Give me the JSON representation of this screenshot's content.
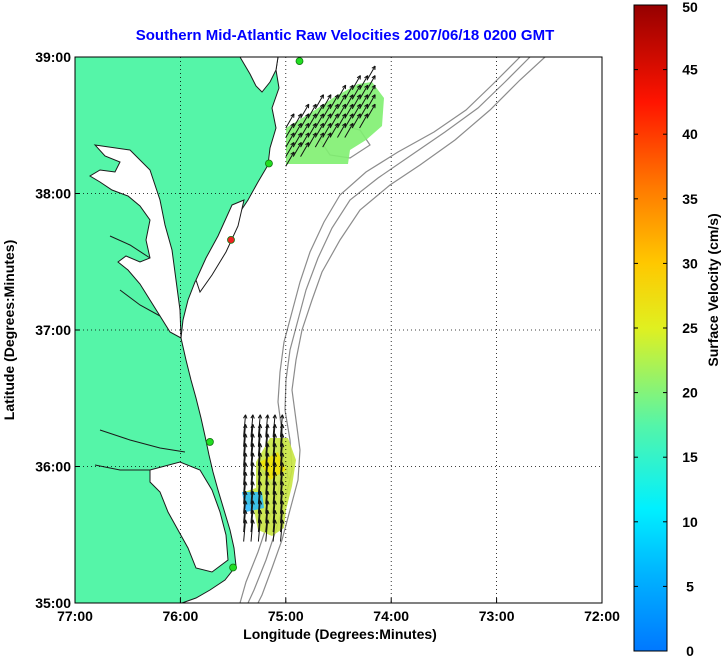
{
  "chart_data": {
    "type": "map",
    "title": "Southern Mid-Atlantic Raw Velocities 2007/06/18 0200 GMT",
    "xlabel": "Longitude (Degrees:Minutes)",
    "ylabel": "Latitude (Degrees:Minutes)",
    "xlim": [
      -77,
      -72
    ],
    "ylim": [
      35,
      39
    ],
    "x_ticks": [
      "77:00",
      "76:00",
      "75:00",
      "74:00",
      "73:00",
      "72:00"
    ],
    "y_ticks": [
      "35:00",
      "36:00",
      "37:00",
      "38:00",
      "39:00"
    ],
    "grid": true,
    "colorbar": {
      "label": "Surface Velocity (cm/s)",
      "min": 0,
      "max": 50,
      "ticks": [
        "0",
        "5",
        "10",
        "15",
        "20",
        "25",
        "30",
        "35",
        "40",
        "45",
        "50"
      ]
    },
    "colors": {
      "land": "#55f5a8",
      "coast": "#1a1a1a",
      "bathymetry": "#8c8c8c",
      "title": "#0000ff",
      "station_green": "#22dd22",
      "station_red": "#ee2222"
    },
    "stations": [
      {
        "name": "",
        "lon": -74.87,
        "lat": 38.97,
        "color": "green"
      },
      {
        "name": "",
        "lon": -75.16,
        "lat": 38.22,
        "color": "green"
      },
      {
        "name": "",
        "lon": -75.52,
        "lat": 37.66,
        "color": "red"
      },
      {
        "name": "",
        "lon": -75.72,
        "lat": 36.18,
        "color": "green"
      },
      {
        "name": "",
        "lon": -75.5,
        "lat": 35.26,
        "color": "green"
      }
    ],
    "vector_fields": [
      {
        "region": "north",
        "lon_range": [
          -75.0,
          -74.2
        ],
        "lat_range": [
          38.2,
          38.85
        ],
        "speed_cm_s": 16,
        "direction_deg": 30
      },
      {
        "region": "south",
        "lon_range": [
          -75.4,
          -75.0
        ],
        "lat_range": [
          35.45,
          36.25
        ],
        "speed_cm_s": 22,
        "direction_deg": 5
      }
    ]
  }
}
